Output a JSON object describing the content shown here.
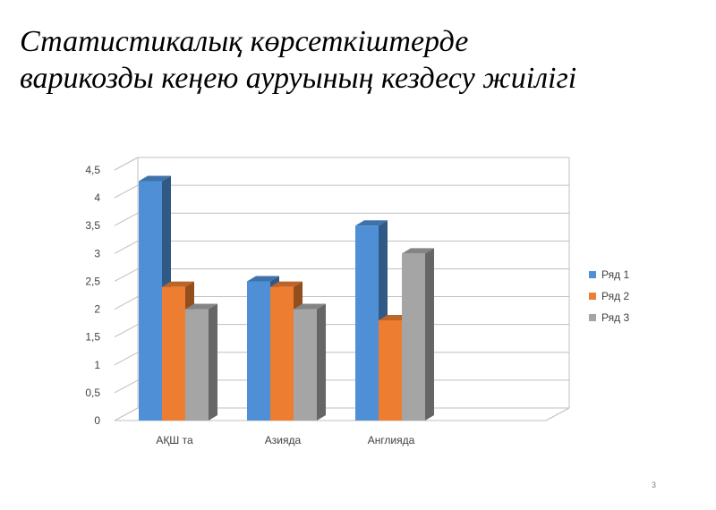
{
  "slide": {
    "title_line1": "Статистикалық көрсеткіштерде",
    "title_line2": "варикозды кеңею ауруының кездесу жиілігі",
    "page_number": "3"
  },
  "chart_data": {
    "type": "bar",
    "categories": [
      "АҚШ та",
      "Азияда",
      "Англияда"
    ],
    "series": [
      {
        "name": "Ряд 1",
        "values": [
          4.3,
          2.5,
          3.5
        ],
        "color": "#4f8fd6"
      },
      {
        "name": "Ряд 2",
        "values": [
          2.4,
          2.4,
          1.8
        ],
        "color": "#ed7d31"
      },
      {
        "name": "Ряд 3",
        "values": [
          2.0,
          2.0,
          3.0
        ],
        "color": "#a5a5a5"
      }
    ],
    "y_ticks": [
      "0",
      "0,5",
      "1",
      "1,5",
      "2",
      "2,5",
      "3",
      "3,5",
      "4",
      "4,5"
    ],
    "ylim": [
      0,
      4.5
    ],
    "grid": true,
    "legend_position": "right",
    "style": "3d-clustered-column"
  }
}
